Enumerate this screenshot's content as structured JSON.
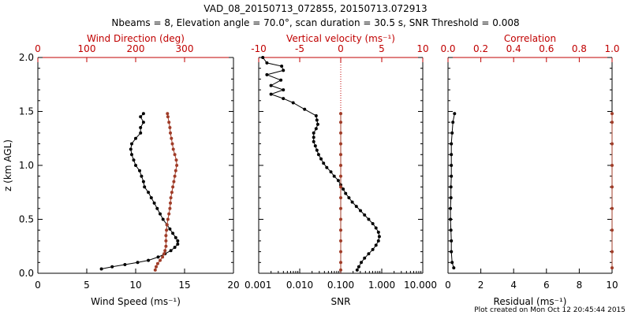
{
  "title_line1": "VAD_08_20150713_072855, 20150713.072913",
  "title_line2": "Nbeams = 8, Elevation angle = 70.0°, scan duration = 30.5 s, SNR Threshold = 0.008",
  "footer": "Plot created on Mon Oct 12 20:45:44 2015",
  "colors": {
    "black_series": "#000000",
    "red_series": "#a03c28",
    "red_axis": "#c00000"
  },
  "y_axis": {
    "label": "z (km AGL)",
    "ylim": [
      0.0,
      2.0
    ],
    "ticks": [
      "0.0",
      "0.5",
      "1.0",
      "1.5",
      "2.0"
    ]
  },
  "panels": [
    {
      "id": "wind",
      "bottom_label": "Wind Speed (ms⁻¹)",
      "bottom_ticks": [
        "0",
        "5",
        "10",
        "15",
        "20"
      ],
      "top_label": "Wind Direction (deg)",
      "top_ticks": [
        "0",
        "100",
        "200",
        "300"
      ]
    },
    {
      "id": "vert",
      "bottom_label": "SNR",
      "bottom_ticks": [
        "0.001",
        "0.010",
        "0.100",
        "1.000",
        "10.000"
      ],
      "top_label": "Vertical velocity (ms⁻¹)",
      "top_ticks": [
        "-10",
        "-5",
        "0",
        "5",
        "10"
      ]
    },
    {
      "id": "resid",
      "bottom_label": "Residual (ms⁻¹)",
      "bottom_ticks": [
        "0",
        "2",
        "4",
        "6",
        "8",
        "10"
      ],
      "top_label": "Correlation",
      "top_ticks": [
        "0.0",
        "0.2",
        "0.4",
        "0.6",
        "0.8",
        "1.0"
      ]
    }
  ],
  "chart_data": [
    {
      "type": "line",
      "title": "Wind Direction (deg)",
      "xlabel": "Wind Speed (ms⁻¹)",
      "ylabel": "z (km AGL)",
      "ylim": [
        0,
        2
      ],
      "xlim_bottom": [
        0,
        20
      ],
      "xlim_top": [
        0,
        400
      ],
      "series": [
        {
          "name": "Wind Speed (ms⁻¹)",
          "axis": "bottom",
          "color": "#000000",
          "points": [
            [
              6.5,
              0.04
            ],
            [
              7.6,
              0.06
            ],
            [
              8.9,
              0.08
            ],
            [
              10.2,
              0.1
            ],
            [
              11.3,
              0.12
            ],
            [
              12.3,
              0.15
            ],
            [
              13.0,
              0.18
            ],
            [
              13.6,
              0.21
            ],
            [
              14.0,
              0.24
            ],
            [
              14.3,
              0.27
            ],
            [
              14.3,
              0.3
            ],
            [
              14.1,
              0.33
            ],
            [
              13.8,
              0.37
            ],
            [
              13.5,
              0.41
            ],
            [
              13.2,
              0.45
            ],
            [
              12.8,
              0.5
            ],
            [
              12.5,
              0.55
            ],
            [
              12.2,
              0.6
            ],
            [
              11.9,
              0.65
            ],
            [
              11.6,
              0.7
            ],
            [
              11.3,
              0.75
            ],
            [
              10.9,
              0.8
            ],
            [
              10.8,
              0.85
            ],
            [
              10.6,
              0.9
            ],
            [
              10.4,
              0.95
            ],
            [
              10.0,
              1.0
            ],
            [
              9.8,
              1.05
            ],
            [
              9.6,
              1.1
            ],
            [
              9.5,
              1.15
            ],
            [
              9.6,
              1.2
            ],
            [
              10.0,
              1.25
            ],
            [
              10.5,
              1.3
            ],
            [
              10.5,
              1.35
            ],
            [
              10.8,
              1.4
            ],
            [
              10.5,
              1.45
            ],
            [
              10.8,
              1.48
            ]
          ]
        },
        {
          "name": "Wind Direction (deg)",
          "axis": "top",
          "color": "#a03c28",
          "points": [
            [
              240,
              0.03
            ],
            [
              242,
              0.06
            ],
            [
              245,
              0.09
            ],
            [
              250,
              0.12
            ],
            [
              255,
              0.15
            ],
            [
              258,
              0.18
            ],
            [
              260,
              0.21
            ],
            [
              262,
              0.25
            ],
            [
              262,
              0.3
            ],
            [
              262,
              0.35
            ],
            [
              263,
              0.4
            ],
            [
              264,
              0.45
            ],
            [
              266,
              0.5
            ],
            [
              268,
              0.55
            ],
            [
              270,
              0.6
            ],
            [
              271,
              0.65
            ],
            [
              272,
              0.7
            ],
            [
              274,
              0.75
            ],
            [
              276,
              0.8
            ],
            [
              278,
              0.85
            ],
            [
              280,
              0.9
            ],
            [
              282,
              0.95
            ],
            [
              284,
              1.0
            ],
            [
              283,
              1.05
            ],
            [
              280,
              1.1
            ],
            [
              277,
              1.15
            ],
            [
              275,
              1.2
            ],
            [
              273,
              1.25
            ],
            [
              271,
              1.3
            ],
            [
              270,
              1.35
            ],
            [
              268,
              1.4
            ],
            [
              266,
              1.45
            ],
            [
              265,
              1.48
            ]
          ]
        }
      ]
    },
    {
      "type": "line",
      "title": "Vertical velocity (ms⁻¹)",
      "xlabel": "SNR",
      "ylabel": "z (km AGL)",
      "ylim": [
        0,
        2
      ],
      "xlim_bottom": [
        0.001,
        10
      ],
      "xscale_bottom": "log",
      "xlim_top": [
        -10,
        10
      ],
      "series": [
        {
          "name": "Vertical velocity (ms⁻¹)",
          "axis": "top",
          "color": "#000000",
          "points": [
            [
              2.0,
              0.03
            ],
            [
              2.2,
              0.06
            ],
            [
              2.5,
              0.1
            ],
            [
              2.9,
              0.14
            ],
            [
              3.4,
              0.18
            ],
            [
              3.9,
              0.22
            ],
            [
              4.3,
              0.26
            ],
            [
              4.6,
              0.3
            ],
            [
              4.7,
              0.34
            ],
            [
              4.6,
              0.38
            ],
            [
              4.3,
              0.42
            ],
            [
              3.9,
              0.46
            ],
            [
              3.4,
              0.5
            ],
            [
              2.9,
              0.54
            ],
            [
              2.4,
              0.58
            ],
            [
              1.9,
              0.62
            ],
            [
              1.4,
              0.66
            ],
            [
              1.0,
              0.7
            ],
            [
              0.6,
              0.74
            ],
            [
              0.3,
              0.78
            ],
            [
              0.0,
              0.82
            ],
            [
              -0.3,
              0.86
            ],
            [
              -0.8,
              0.9
            ],
            [
              -1.2,
              0.94
            ],
            [
              -1.7,
              0.98
            ],
            [
              -2.1,
              1.02
            ],
            [
              -2.4,
              1.06
            ],
            [
              -2.7,
              1.1
            ],
            [
              -2.9,
              1.14
            ],
            [
              -3.1,
              1.18
            ],
            [
              -3.3,
              1.22
            ],
            [
              -3.3,
              1.26
            ],
            [
              -3.3,
              1.3
            ],
            [
              -3.0,
              1.34
            ],
            [
              -2.8,
              1.38
            ],
            [
              -2.9,
              1.42
            ],
            [
              -3.0,
              1.46
            ],
            [
              -4.4,
              1.52
            ],
            [
              -5.8,
              1.58
            ],
            [
              -7.0,
              1.62
            ],
            [
              -8.5,
              1.66
            ],
            [
              -7.0,
              1.7
            ],
            [
              -8.5,
              1.74
            ],
            [
              -7.3,
              1.79
            ],
            [
              -9.0,
              1.84
            ],
            [
              -7.0,
              1.88
            ],
            [
              -7.2,
              1.92
            ],
            [
              -9.0,
              1.95
            ],
            [
              -9.5,
              2.0
            ]
          ]
        },
        {
          "name": "SNR",
          "axis": "bottom",
          "color": "#a03c28",
          "points": [
            [
              0.1,
              0.03
            ],
            [
              0.1,
              0.1
            ],
            [
              0.1,
              0.2
            ],
            [
              0.1,
              0.3
            ],
            [
              0.1,
              0.4
            ],
            [
              0.1,
              0.5
            ],
            [
              0.1,
              0.6
            ],
            [
              0.1,
              0.7
            ],
            [
              0.1,
              0.8
            ],
            [
              0.1,
              0.9
            ],
            [
              0.1,
              1.0
            ],
            [
              0.1,
              1.1
            ],
            [
              0.1,
              1.2
            ],
            [
              0.1,
              1.3
            ],
            [
              0.1,
              1.4
            ],
            [
              0.1,
              1.48
            ]
          ]
        }
      ]
    },
    {
      "type": "line",
      "title": "Correlation",
      "xlabel": "Residual (ms⁻¹)",
      "ylabel": "z (km AGL)",
      "ylim": [
        0,
        2
      ],
      "xlim_bottom": [
        0,
        10
      ],
      "xlim_top": [
        0,
        1
      ],
      "series": [
        {
          "name": "Residual (ms⁻¹)",
          "axis": "bottom",
          "color": "#000000",
          "points": [
            [
              0.35,
              0.05
            ],
            [
              0.25,
              0.1
            ],
            [
              0.2,
              0.2
            ],
            [
              0.2,
              0.3
            ],
            [
              0.18,
              0.4
            ],
            [
              0.15,
              0.5
            ],
            [
              0.15,
              0.6
            ],
            [
              0.18,
              0.7
            ],
            [
              0.18,
              0.8
            ],
            [
              0.2,
              0.9
            ],
            [
              0.2,
              1.0
            ],
            [
              0.2,
              1.1
            ],
            [
              0.2,
              1.2
            ],
            [
              0.25,
              1.3
            ],
            [
              0.3,
              1.4
            ],
            [
              0.4,
              1.48
            ]
          ]
        },
        {
          "name": "Correlation",
          "axis": "top",
          "color": "#a03c28",
          "points": [
            [
              1.0,
              0.05
            ],
            [
              1.0,
              0.2
            ],
            [
              1.0,
              0.4
            ],
            [
              1.0,
              0.6
            ],
            [
              1.0,
              0.8
            ],
            [
              1.0,
              1.0
            ],
            [
              1.0,
              1.2
            ],
            [
              1.0,
              1.4
            ],
            [
              1.0,
              1.48
            ]
          ]
        }
      ]
    }
  ]
}
